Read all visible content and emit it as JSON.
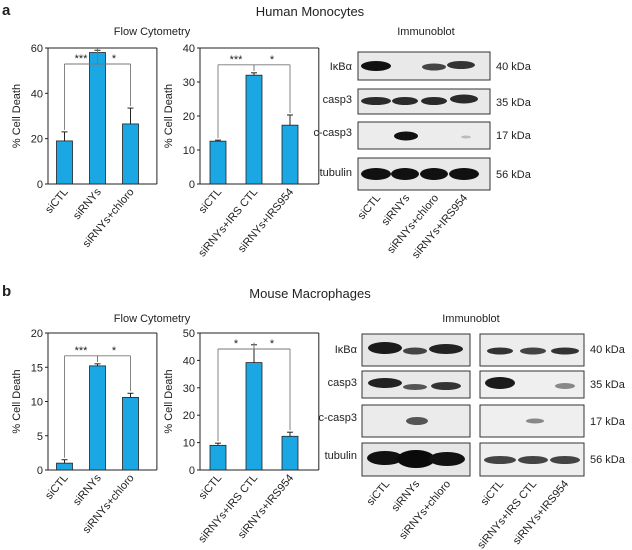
{
  "panel_a": {
    "letter": "a",
    "title": "Human Monocytes",
    "flow_title": "Flow Cytometry",
    "blot_title": "Immunoblot",
    "blot_rows": [
      "IκBα",
      "casp3",
      "c-casp3",
      "tubulin"
    ],
    "kda": [
      "40 kDa",
      "35 kDa",
      "17 kDa",
      "56 kDa"
    ],
    "lanes": [
      "siCTL",
      "siRNYs",
      "siRNYs+chloro",
      "siRNYs+IRS954"
    ]
  },
  "panel_b": {
    "letter": "b",
    "title": "Mouse Macrophages",
    "flow_title": "Flow Cytometry",
    "blot_title": "Immunoblot",
    "blot_rows": [
      "IκBα",
      "casp3",
      "c-casp3",
      "tubulin"
    ],
    "kda": [
      "40 kDa",
      "35 kDa",
      "17 kDa",
      "56 kDa"
    ],
    "lanes_left": [
      "siCTL",
      "siRNYs",
      "siRNYs+chloro"
    ],
    "lanes_right": [
      "siCTL",
      "siRNYs+IRS CTL",
      "siRNYs+IRS954"
    ]
  },
  "colors": {
    "bar": "#1ba7e3",
    "axis": "#222222",
    "blot_bg": "#e9e9e9"
  },
  "chart_data": [
    {
      "type": "bar",
      "panel": "a",
      "ylabel": "% Cell Death",
      "ylim": [
        0,
        60
      ],
      "ticks": [
        0,
        20,
        40,
        60
      ],
      "categories": [
        "siCTL",
        "siRNYs",
        "siRNYs+chloro"
      ],
      "values": [
        19,
        58,
        26.5
      ],
      "errors": [
        4,
        1,
        7
      ],
      "sig": [
        {
          "from": 0,
          "to": 1,
          "label": "***"
        },
        {
          "from": 1,
          "to": 2,
          "label": "*"
        }
      ]
    },
    {
      "type": "bar",
      "panel": "a",
      "ylabel": "% Cell Death",
      "ylim": [
        0,
        40
      ],
      "ticks": [
        0,
        10,
        20,
        30,
        40
      ],
      "categories": [
        "siCTL",
        "siRNYs+IRS CTL",
        "siRNYs+IRS954"
      ],
      "values": [
        12.6,
        32,
        17.3
      ],
      "errors": [
        0.3,
        0.7,
        3
      ],
      "sig": [
        {
          "from": 0,
          "to": 1,
          "label": "***"
        },
        {
          "from": 1,
          "to": 2,
          "label": "*"
        }
      ]
    },
    {
      "type": "bar",
      "panel": "b",
      "ylabel": "% Cell Death",
      "ylim": [
        0,
        20
      ],
      "ticks": [
        0,
        5,
        10,
        15,
        20
      ],
      "categories": [
        "siCTL",
        "siRNYs",
        "siRNYs+chloro"
      ],
      "values": [
        1,
        15.2,
        10.6
      ],
      "errors": [
        0.5,
        0.3,
        0.6
      ],
      "sig": [
        {
          "from": 0,
          "to": 1,
          "label": "***"
        },
        {
          "from": 1,
          "to": 2,
          "label": "*"
        }
      ]
    },
    {
      "type": "bar",
      "panel": "b",
      "ylabel": "% Cell Death",
      "ylim": [
        0,
        50
      ],
      "ticks": [
        0,
        10,
        20,
        30,
        40,
        50
      ],
      "categories": [
        "siCTL",
        "siRNYs+IRS CTL",
        "siRNYs+IRS954"
      ],
      "values": [
        9,
        39.2,
        12.3
      ],
      "errors": [
        0.8,
        6.5,
        1.5
      ],
      "sig": [
        {
          "from": 0,
          "to": 1,
          "label": "*"
        },
        {
          "from": 1,
          "to": 2,
          "label": "*"
        }
      ]
    }
  ]
}
